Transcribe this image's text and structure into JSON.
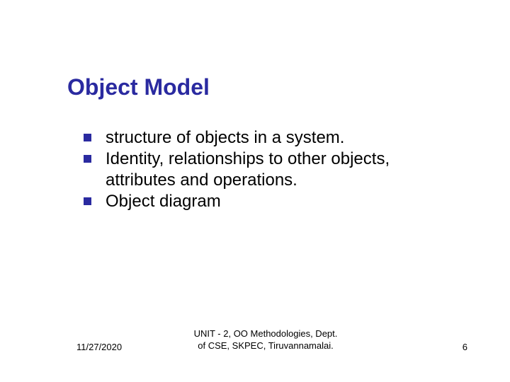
{
  "title": "Object Model",
  "title_color": "#2a2aa0",
  "bullet_marker_color": "#2a2aa0",
  "bullets": [
    "structure of objects in a system.",
    "Identity, relationships to other objects, attributes and operations.",
    "Object diagram"
  ],
  "footer": {
    "date": "11/27/2020",
    "center_line1": "UNIT - 2, OO Methodologies, Dept.",
    "center_line2": "of CSE, SKPEC, Tiruvannamalai.",
    "page_number": "6"
  },
  "background_color": "#ffffff",
  "body_text_color": "#000000",
  "title_fontsize": 32,
  "bullet_fontsize": 24,
  "footer_fontsize": 13
}
